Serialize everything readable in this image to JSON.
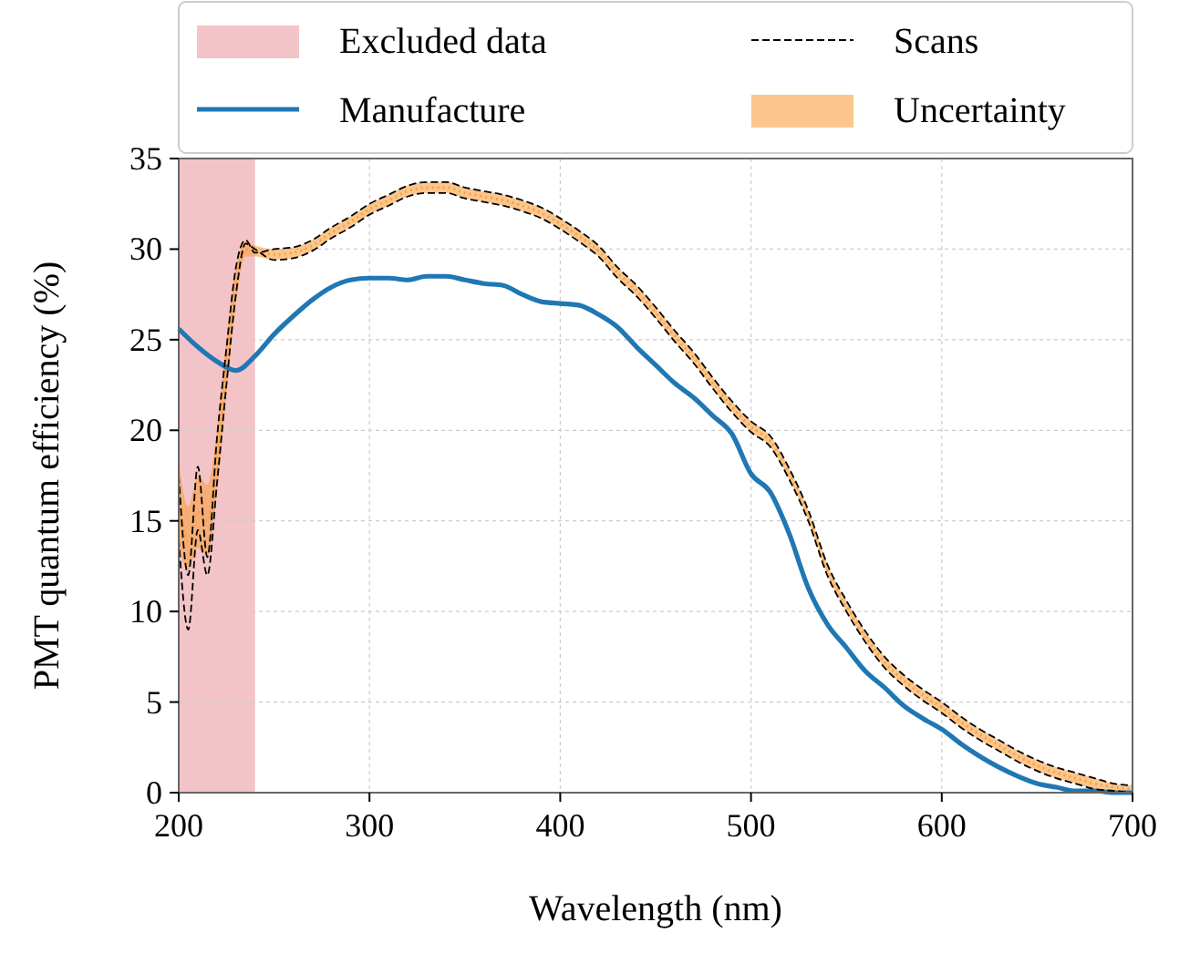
{
  "chart_data": {
    "type": "line",
    "xlabel": "Wavelength (nm)",
    "ylabel": "PMT quantum efficiency (%)",
    "xlim": [
      200,
      700
    ],
    "ylim": [
      0,
      35
    ],
    "xticks": [
      200,
      300,
      400,
      500,
      600,
      700
    ],
    "yticks": [
      0,
      5,
      10,
      15,
      20,
      25,
      30,
      35
    ],
    "grid": true,
    "legend": "top",
    "bands": [
      {
        "axis": "x",
        "from": 200,
        "to": 240,
        "label": "Excluded data",
        "color": "#f2c4c7"
      }
    ],
    "series": [
      {
        "name": "Manufacture",
        "color": "#1f77b4",
        "line_style": "solid",
        "x": [
          200,
          210,
          220,
          230,
          240,
          250,
          260,
          270,
          280,
          290,
          300,
          310,
          320,
          330,
          340,
          350,
          360,
          370,
          380,
          390,
          400,
          410,
          420,
          430,
          440,
          450,
          460,
          470,
          480,
          490,
          500,
          510,
          520,
          530,
          540,
          550,
          560,
          570,
          580,
          590,
          600,
          610,
          620,
          630,
          640,
          650,
          660,
          670,
          680,
          690,
          700
        ],
        "values": [
          25.6,
          24.6,
          23.8,
          23.3,
          24.1,
          25.3,
          26.3,
          27.2,
          27.9,
          28.3,
          28.4,
          28.4,
          28.3,
          28.5,
          28.5,
          28.3,
          28.1,
          28.0,
          27.5,
          27.1,
          27.0,
          26.9,
          26.4,
          25.7,
          24.6,
          23.6,
          22.6,
          21.8,
          20.8,
          19.8,
          17.6,
          16.6,
          14.3,
          11.3,
          9.3,
          8.0,
          6.7,
          5.8,
          4.8,
          4.1,
          3.5,
          2.7,
          2.0,
          1.4,
          0.9,
          0.5,
          0.3,
          0.1,
          0.1,
          0,
          0
        ]
      },
      {
        "name": "Uncertainty",
        "color": "#f9a03f",
        "line_style": "dotted",
        "x": [
          200,
          205,
          210,
          215,
          220,
          225,
          230,
          235,
          240,
          250,
          260,
          270,
          280,
          290,
          300,
          310,
          320,
          330,
          340,
          350,
          360,
          370,
          380,
          390,
          400,
          410,
          420,
          430,
          440,
          450,
          460,
          470,
          480,
          490,
          500,
          510,
          520,
          530,
          540,
          550,
          560,
          570,
          580,
          590,
          600,
          610,
          620,
          630,
          640,
          650,
          660,
          670,
          680,
          690,
          700
        ],
        "values": [
          16.0,
          13.9,
          15.5,
          15.0,
          18.3,
          23.6,
          28.0,
          30.0,
          29.9,
          29.7,
          29.8,
          30.2,
          30.9,
          31.5,
          32.2,
          32.7,
          33.2,
          33.4,
          33.4,
          33.1,
          32.9,
          32.7,
          32.4,
          32.0,
          31.4,
          30.7,
          29.9,
          28.7,
          27.7,
          26.5,
          25.2,
          24.0,
          22.6,
          21.3,
          20.2,
          19.4,
          17.6,
          15.3,
          12.3,
          10.3,
          8.6,
          7.2,
          6.2,
          5.4,
          4.7,
          3.9,
          3.2,
          2.6,
          2.0,
          1.5,
          1.1,
          0.8,
          0.5,
          0.3,
          0.2
        ],
        "lower": [
          13.5,
          12.3,
          13.5,
          13.0,
          16.5,
          22.0,
          27.0,
          29.6,
          29.6,
          29.4,
          29.5,
          29.9,
          30.6,
          31.2,
          31.9,
          32.4,
          32.9,
          33.1,
          33.1,
          32.8,
          32.6,
          32.4,
          32.1,
          31.7,
          31.1,
          30.4,
          29.6,
          28.4,
          27.4,
          26.2,
          24.9,
          23.7,
          22.3,
          21.0,
          19.9,
          19.1,
          17.3,
          15.0,
          12.0,
          10.0,
          8.3,
          6.9,
          5.9,
          5.1,
          4.4,
          3.6,
          2.9,
          2.3,
          1.7,
          1.2,
          0.8,
          0.5,
          0.2,
          0.1,
          0
        ],
        "upper": [
          18.3,
          15.8,
          17.5,
          17.0,
          20.0,
          25.0,
          29.0,
          30.4,
          30.2,
          30.0,
          30.1,
          30.5,
          31.2,
          31.8,
          32.5,
          33.0,
          33.5,
          33.7,
          33.7,
          33.4,
          33.2,
          33.0,
          32.7,
          32.3,
          31.7,
          31.0,
          30.2,
          29.0,
          28.0,
          26.8,
          25.5,
          24.3,
          22.9,
          21.6,
          20.5,
          19.7,
          17.9,
          15.6,
          12.6,
          10.6,
          8.9,
          7.5,
          6.5,
          5.7,
          5.0,
          4.2,
          3.5,
          2.9,
          2.3,
          1.8,
          1.4,
          1.1,
          0.8,
          0.5,
          0.4
        ]
      },
      {
        "name": "Scans",
        "color": "#000000",
        "line_style": "dashed",
        "x": [
          200,
          205,
          210,
          215,
          220,
          225,
          230,
          235,
          240,
          250,
          260,
          270,
          280,
          290,
          300,
          310,
          320,
          330,
          340,
          350,
          360,
          370,
          380,
          390,
          400,
          410,
          420,
          430,
          440,
          450,
          460,
          470,
          480,
          490,
          500,
          510,
          520,
          530,
          540,
          550,
          560,
          570,
          580,
          590,
          600,
          610,
          620,
          630,
          640,
          650,
          660,
          670,
          680,
          690,
          700
        ],
        "values": [
          17.5,
          12.0,
          18.0,
          13.0,
          19.5,
          24.5,
          29.0,
          30.5,
          29.8,
          30.0,
          30.1,
          30.5,
          31.2,
          31.8,
          32.5,
          33.0,
          33.5,
          33.7,
          33.7,
          33.4,
          33.2,
          33.0,
          32.7,
          32.3,
          31.7,
          31.0,
          30.2,
          29.0,
          28.0,
          26.8,
          25.5,
          24.3,
          22.9,
          21.6,
          20.5,
          19.7,
          17.9,
          15.6,
          12.6,
          10.6,
          8.9,
          7.5,
          6.5,
          5.7,
          5.0,
          4.2,
          3.5,
          2.9,
          2.3,
          1.8,
          1.4,
          1.1,
          0.8,
          0.5,
          0.4
        ]
      },
      {
        "color": "#000000",
        "line_style": "dashed",
        "x": [
          200,
          205,
          210,
          215,
          220,
          225,
          230,
          235,
          240,
          250,
          260,
          270,
          280,
          290,
          300,
          310,
          320,
          330,
          340,
          350,
          360,
          370,
          380,
          390,
          400,
          410,
          420,
          430,
          440,
          450,
          460,
          470,
          480,
          490,
          500,
          510,
          520,
          530,
          540,
          550,
          560,
          570,
          580,
          590,
          600,
          610,
          620,
          630,
          640,
          650,
          660,
          670,
          680,
          690,
          700
        ],
        "values": [
          14.0,
          9.0,
          14.5,
          12.0,
          17.0,
          22.5,
          27.5,
          30.3,
          30.0,
          29.4,
          29.5,
          29.9,
          30.6,
          31.2,
          31.9,
          32.4,
          32.9,
          33.1,
          33.1,
          32.8,
          32.6,
          32.4,
          32.1,
          31.7,
          31.1,
          30.4,
          29.6,
          28.4,
          27.4,
          26.2,
          24.9,
          23.7,
          22.3,
          21.0,
          19.9,
          19.1,
          17.3,
          15.0,
          12.0,
          10.0,
          8.3,
          6.9,
          5.9,
          5.1,
          4.4,
          3.6,
          2.9,
          2.3,
          1.7,
          1.2,
          0.8,
          0.5,
          0.2,
          0.1,
          0
        ]
      }
    ]
  }
}
